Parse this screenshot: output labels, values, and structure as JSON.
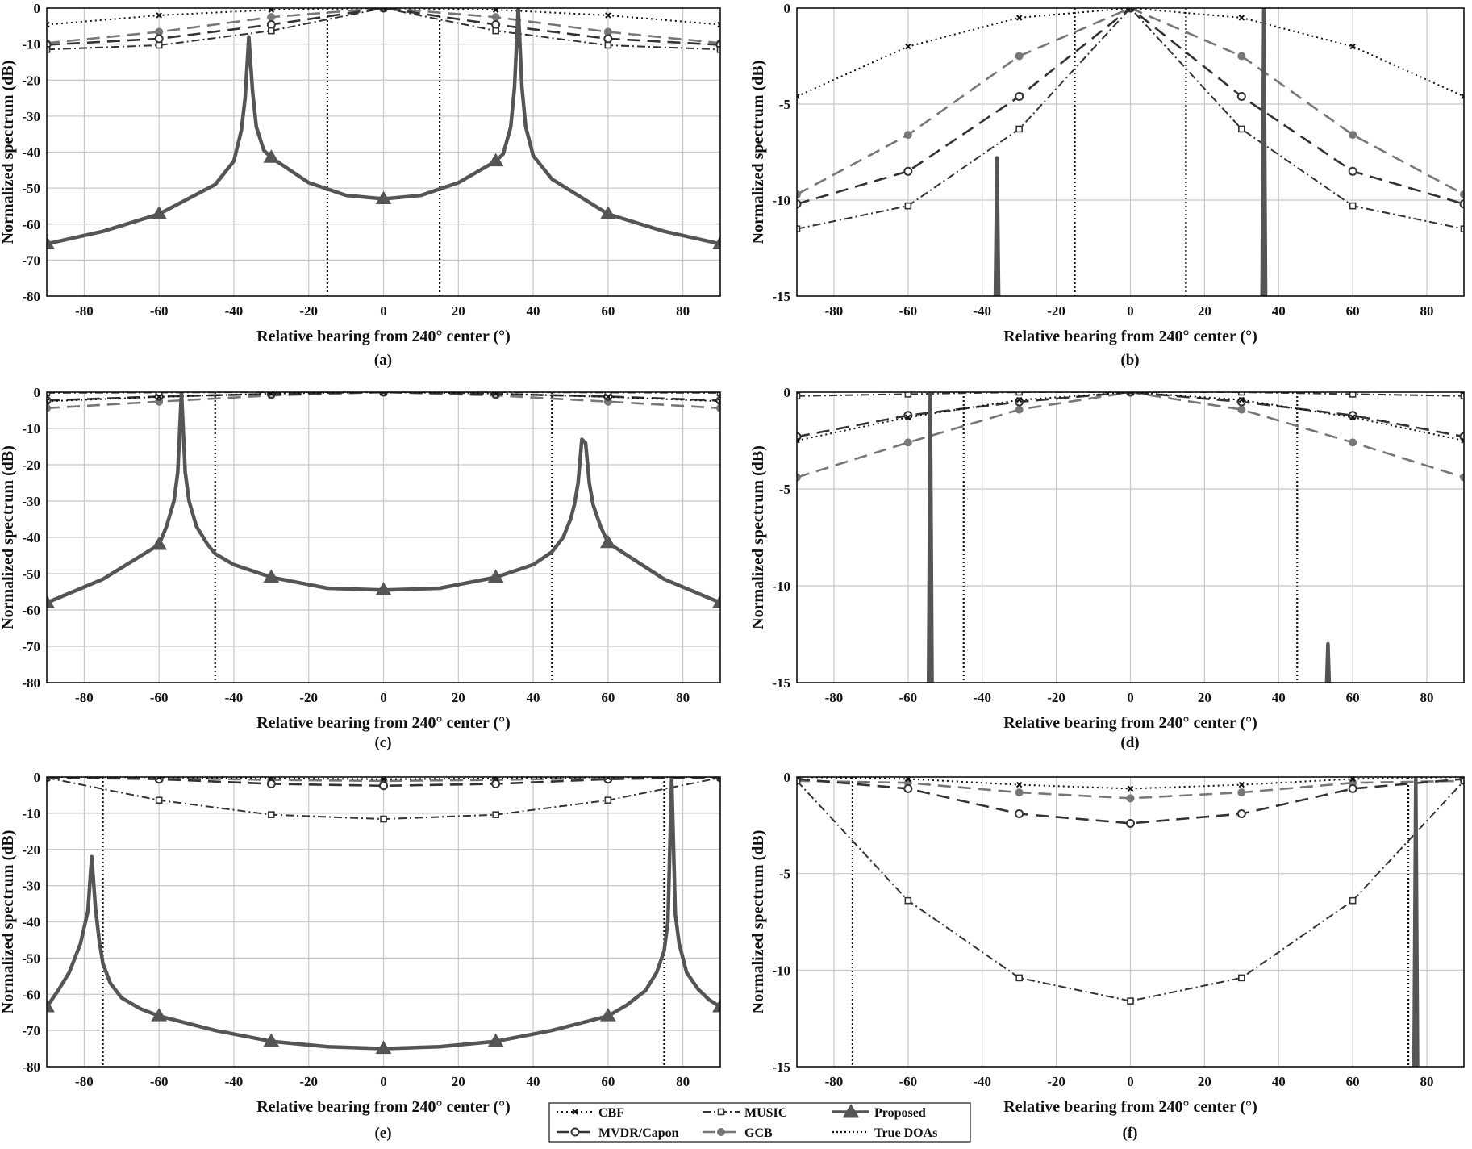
{
  "figure": {
    "legend": {
      "entries": [
        {
          "label": "CBF",
          "style": "dotted-x"
        },
        {
          "label": "MUSIC",
          "style": "dashdot-square"
        },
        {
          "label": "Proposed",
          "style": "solid-triangle"
        },
        {
          "label": "MVDR/Capon",
          "style": "dash-circle"
        },
        {
          "label": "GCB",
          "style": "dash-dot-gray"
        },
        {
          "label": "True DOAs",
          "style": "dotted-vertical"
        }
      ]
    },
    "colors": {
      "proposed": "#555555",
      "cbf": "#111111",
      "music": "#333333",
      "mvdr": "#333333",
      "gcb": "#777777",
      "truedoa": "#111111",
      "grid": "#c8c8c8"
    }
  },
  "chart_data": [
    {
      "panel": "(a)",
      "type": "line",
      "xlabel": "Relative bearing from 240° center (°)",
      "ylabel": "Normalized spectrum (dB)",
      "xlim": [
        -90,
        90
      ],
      "ylim": [
        -80,
        0
      ],
      "xticks": [
        -80,
        -60,
        -40,
        -20,
        0,
        20,
        40,
        60,
        80
      ],
      "yticks": [
        0,
        -10,
        -20,
        -30,
        -40,
        -50,
        -60,
        -70,
        -80
      ],
      "true_doas": [
        -15,
        15
      ],
      "series": [
        {
          "name": "CBF",
          "x": [
            -90,
            -60,
            -30,
            0,
            30,
            60,
            90
          ],
          "y": [
            -4.6,
            -2.0,
            -0.5,
            0,
            -0.5,
            -2.0,
            -4.6
          ]
        },
        {
          "name": "MVDR/Capon",
          "x": [
            -90,
            -60,
            -30,
            0,
            30,
            60,
            90
          ],
          "y": [
            -10.2,
            -8.5,
            -4.6,
            0,
            -4.6,
            -8.5,
            -10.2
          ]
        },
        {
          "name": "MUSIC",
          "x": [
            -90,
            -60,
            -30,
            0,
            30,
            60,
            90
          ],
          "y": [
            -11.5,
            -10.3,
            -6.3,
            0,
            -6.3,
            -10.3,
            -11.5
          ]
        },
        {
          "name": "GCB",
          "x": [
            -90,
            -60,
            -30,
            0,
            30,
            60,
            90
          ],
          "y": [
            -9.7,
            -6.6,
            -2.5,
            0,
            -2.5,
            -6.6,
            -9.7
          ]
        },
        {
          "name": "Proposed",
          "x": [
            -90,
            -75,
            -60,
            -45,
            -40,
            -38,
            -37,
            -36,
            -35,
            -34,
            -32,
            -30,
            -20,
            -10,
            0,
            10,
            20,
            30,
            32,
            34,
            35,
            36,
            37,
            38,
            40,
            45,
            60,
            75,
            90
          ],
          "y": [
            -65.5,
            -62,
            -57.2,
            -49,
            -42.5,
            -34,
            -25,
            -8,
            -23,
            -33,
            -39.5,
            -41.5,
            -48.5,
            -52,
            -53,
            -52,
            -48.5,
            -42.5,
            -40.5,
            -33,
            -22,
            0,
            -22,
            -33,
            -41,
            -47.5,
            -57.2,
            -62,
            -65.5
          ]
        }
      ]
    },
    {
      "panel": "(b)",
      "type": "line",
      "xlabel": "Relative bearing from 240° center (°)",
      "ylabel": "Normalized spectrum (dB)",
      "xlim": [
        -90,
        90
      ],
      "ylim": [
        -15,
        0
      ],
      "xticks": [
        -80,
        -60,
        -40,
        -20,
        0,
        20,
        40,
        60,
        80
      ],
      "yticks": [
        0,
        -5,
        -10,
        -15
      ],
      "true_doas": [
        -15,
        15
      ],
      "series": [
        {
          "name": "CBF",
          "x": [
            -90,
            -60,
            -30,
            0,
            30,
            60,
            90
          ],
          "y": [
            -4.6,
            -2.0,
            -0.5,
            0,
            -0.5,
            -2.0,
            -4.6
          ]
        },
        {
          "name": "MVDR/Capon",
          "x": [
            -90,
            -60,
            -30,
            0,
            30,
            60,
            90
          ],
          "y": [
            -10.2,
            -8.5,
            -4.6,
            0,
            -4.6,
            -8.5,
            -10.2
          ]
        },
        {
          "name": "MUSIC",
          "x": [
            -90,
            -60,
            -30,
            0,
            30,
            60,
            90
          ],
          "y": [
            -11.5,
            -10.3,
            -6.3,
            0,
            -6.3,
            -10.3,
            -11.5
          ]
        },
        {
          "name": "GCB",
          "x": [
            -90,
            -60,
            -30,
            0,
            30,
            60,
            90
          ],
          "y": [
            -9.7,
            -6.6,
            -2.5,
            0,
            -2.5,
            -6.6,
            -9.7
          ]
        },
        {
          "name": "Proposed",
          "x": [
            -36.5,
            -36,
            -35.5,
            null,
            35.5,
            36,
            36.5
          ],
          "y": [
            -16,
            -7.8,
            -16,
            null,
            -16,
            0,
            -16
          ]
        }
      ]
    },
    {
      "panel": "(c)",
      "type": "line",
      "xlabel": "Relative bearing from 240° center (°)",
      "ylabel": "Normalized spectrum (dB)",
      "xlim": [
        -90,
        90
      ],
      "ylim": [
        -80,
        0
      ],
      "xticks": [
        -80,
        -60,
        -40,
        -20,
        0,
        20,
        40,
        60,
        80
      ],
      "yticks": [
        0,
        -10,
        -20,
        -30,
        -40,
        -50,
        -60,
        -70,
        -80
      ],
      "true_doas": [
        -45,
        45
      ],
      "series": [
        {
          "name": "CBF",
          "x": [
            -90,
            -60,
            -30,
            0,
            30,
            60,
            90
          ],
          "y": [
            -2.5,
            -1.3,
            -0.4,
            0,
            -0.4,
            -1.3,
            -2.5
          ]
        },
        {
          "name": "MVDR/Capon",
          "x": [
            -90,
            -60,
            -30,
            0,
            30,
            60,
            90
          ],
          "y": [
            -2.3,
            -1.2,
            -0.5,
            0,
            -0.5,
            -1.2,
            -2.3
          ]
        },
        {
          "name": "MUSIC",
          "x": [
            -90,
            -60,
            -30,
            0,
            30,
            60,
            90
          ],
          "y": [
            -0.2,
            -0.1,
            0,
            0,
            0,
            -0.1,
            -0.2
          ]
        },
        {
          "name": "GCB",
          "x": [
            -90,
            -60,
            -30,
            0,
            30,
            60,
            90
          ],
          "y": [
            -4.4,
            -2.6,
            -0.9,
            0,
            -0.9,
            -2.6,
            -4.4
          ]
        },
        {
          "name": "Proposed",
          "x": [
            -90,
            -75,
            -60,
            -58,
            -56,
            -55,
            -54,
            -53,
            -52,
            -50,
            -47,
            -45,
            -40,
            -30,
            -15,
            0,
            15,
            30,
            40,
            45,
            48,
            50,
            51,
            52,
            53,
            54,
            55,
            56,
            58,
            60,
            75,
            90
          ],
          "y": [
            -58,
            -51.5,
            -42,
            -37,
            -30,
            -22,
            0,
            -22,
            -30,
            -37,
            -42,
            -44.5,
            -47.5,
            -51,
            -54,
            -54.5,
            -54,
            -51,
            -47.5,
            -44,
            -40,
            -35,
            -31,
            -25,
            -13,
            -14,
            -25,
            -31,
            -37,
            -41.5,
            -51.5,
            -58
          ]
        }
      ]
    },
    {
      "panel": "(d)",
      "type": "line",
      "xlabel": "Relative bearing from 240° center (°)",
      "ylabel": "Normalized spectrum (dB)",
      "xlim": [
        -90,
        90
      ],
      "ylim": [
        -15,
        0
      ],
      "xticks": [
        -80,
        -60,
        -40,
        -20,
        0,
        20,
        40,
        60,
        80
      ],
      "yticks": [
        0,
        -5,
        -10,
        -15
      ],
      "true_doas": [
        -45,
        45
      ],
      "series": [
        {
          "name": "CBF",
          "x": [
            -90,
            -60,
            -30,
            0,
            30,
            60,
            90
          ],
          "y": [
            -2.5,
            -1.3,
            -0.4,
            0,
            -0.4,
            -1.3,
            -2.5
          ]
        },
        {
          "name": "MVDR/Capon",
          "x": [
            -90,
            -60,
            -30,
            0,
            30,
            60,
            90
          ],
          "y": [
            -2.3,
            -1.2,
            -0.5,
            0,
            -0.5,
            -1.2,
            -2.3
          ]
        },
        {
          "name": "MUSIC",
          "x": [
            -90,
            -60,
            -30,
            0,
            30,
            60,
            90
          ],
          "y": [
            -0.2,
            -0.1,
            0,
            0,
            0,
            -0.1,
            -0.2
          ]
        },
        {
          "name": "GCB",
          "x": [
            -90,
            -60,
            -30,
            0,
            30,
            60,
            90
          ],
          "y": [
            -4.4,
            -2.6,
            -0.9,
            0,
            -0.9,
            -2.6,
            -4.4
          ]
        },
        {
          "name": "Proposed",
          "x": [
            -54.5,
            -54,
            -53.5,
            null,
            52.8,
            53.3,
            53.8
          ],
          "y": [
            -16,
            0,
            -16,
            null,
            -16,
            -13,
            -16
          ]
        }
      ]
    },
    {
      "panel": "(e)",
      "type": "line",
      "xlabel": "Relative bearing from 240° center (°)",
      "ylabel": "Normalized spectrum (dB)",
      "xlim": [
        -90,
        90
      ],
      "ylim": [
        -80,
        0
      ],
      "xticks": [
        -80,
        -60,
        -40,
        -20,
        0,
        20,
        40,
        60,
        80
      ],
      "yticks": [
        0,
        -10,
        -20,
        -30,
        -40,
        -50,
        -60,
        -70,
        -80
      ],
      "true_doas": [
        -75,
        75
      ],
      "series": [
        {
          "name": "CBF",
          "x": [
            -90,
            -60,
            -30,
            0,
            30,
            60,
            90
          ],
          "y": [
            0,
            -0.1,
            -0.4,
            -0.6,
            -0.4,
            -0.1,
            0
          ]
        },
        {
          "name": "MVDR/Capon",
          "x": [
            -90,
            -60,
            -30,
            0,
            30,
            60,
            90
          ],
          "y": [
            -0.1,
            -0.6,
            -1.9,
            -2.4,
            -1.9,
            -0.6,
            -0.1
          ]
        },
        {
          "name": "MUSIC",
          "x": [
            -90,
            -60,
            -30,
            0,
            30,
            60,
            90
          ],
          "y": [
            -0.2,
            -6.4,
            -10.4,
            -11.6,
            -10.4,
            -6.4,
            -0.2
          ]
        },
        {
          "name": "GCB",
          "x": [
            -90,
            -60,
            -30,
            0,
            30,
            60,
            90
          ],
          "y": [
            -0.2,
            -0.3,
            -0.8,
            -1.1,
            -0.8,
            -0.3,
            -0.2
          ]
        },
        {
          "name": "Proposed",
          "x": [
            -90,
            -87,
            -84,
            -81,
            -79,
            -78,
            -77,
            -76,
            -75,
            -73,
            -70,
            -65,
            -60,
            -45,
            -30,
            -15,
            0,
            15,
            30,
            45,
            60,
            65,
            70,
            73,
            75,
            76,
            77,
            78,
            79,
            81,
            84,
            87,
            90
          ],
          "y": [
            -63.5,
            -59,
            -54,
            -46,
            -37,
            -22,
            -36,
            -45,
            -51.5,
            -57,
            -61,
            -64,
            -66,
            -70,
            -73,
            -74.5,
            -75,
            -74.5,
            -73,
            -70,
            -66,
            -63,
            -59,
            -54,
            -48,
            -40,
            0,
            -38,
            -46,
            -54,
            -58.5,
            -61.5,
            -63.5
          ]
        }
      ]
    },
    {
      "panel": "(f)",
      "type": "line",
      "xlabel": "Relative bearing from 240° center (°)",
      "ylabel": "Normalized spectrum (dB)",
      "xlim": [
        -90,
        90
      ],
      "ylim": [
        -15,
        0
      ],
      "xticks": [
        -80,
        -60,
        -40,
        -20,
        0,
        20,
        40,
        60,
        80
      ],
      "yticks": [
        0,
        -5,
        -10,
        -15
      ],
      "true_doas": [
        -75,
        75
      ],
      "series": [
        {
          "name": "CBF",
          "x": [
            -90,
            -60,
            -30,
            0,
            30,
            60,
            90
          ],
          "y": [
            0,
            -0.1,
            -0.4,
            -0.6,
            -0.4,
            -0.1,
            0
          ]
        },
        {
          "name": "MVDR/Capon",
          "x": [
            -90,
            -60,
            -30,
            0,
            30,
            60,
            90
          ],
          "y": [
            -0.1,
            -0.6,
            -1.9,
            -2.4,
            -1.9,
            -0.6,
            -0.1
          ]
        },
        {
          "name": "MUSIC",
          "x": [
            -90,
            -60,
            -30,
            0,
            30,
            60,
            90
          ],
          "y": [
            -0.2,
            -6.4,
            -10.4,
            -11.6,
            -10.4,
            -6.4,
            -0.2
          ]
        },
        {
          "name": "GCB",
          "x": [
            -90,
            -60,
            -30,
            0,
            30,
            60,
            90
          ],
          "y": [
            -0.2,
            -0.3,
            -0.8,
            -1.1,
            -0.8,
            -0.3,
            -0.2
          ]
        },
        {
          "name": "Proposed",
          "x": [
            76.5,
            77,
            77.5
          ],
          "y": [
            -16,
            0,
            -16
          ]
        }
      ]
    }
  ]
}
